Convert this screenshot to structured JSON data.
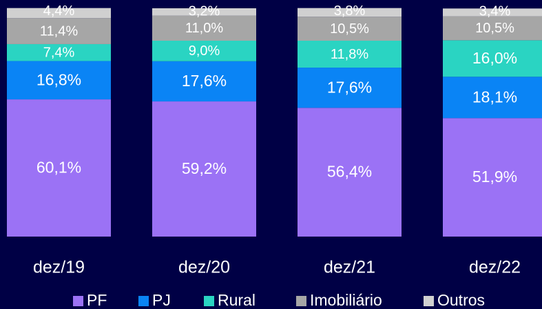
{
  "chart_data": {
    "type": "stacked_bar",
    "categories": [
      "dez/19",
      "dez/20",
      "dez/21",
      "dez/22"
    ],
    "ylim": [
      0,
      100
    ],
    "legend": "bottom",
    "series": [
      {
        "name": "PF",
        "color": "#9b72f5",
        "values": [
          60.1,
          59.2,
          56.4,
          51.9
        ],
        "value_labels": [
          "60,1%",
          "59,2%",
          "56,4%",
          "51,9%"
        ]
      },
      {
        "name": "PJ",
        "color": "#0a84f5",
        "values": [
          16.8,
          17.6,
          17.6,
          18.1
        ],
        "value_labels": [
          "16,8%",
          "17,6%",
          "17,6%",
          "18,1%"
        ]
      },
      {
        "name": "Rural",
        "color": "#2ad4c2",
        "values": [
          7.4,
          9.0,
          11.8,
          16.0
        ],
        "value_labels": [
          "7,4%",
          "9,0%",
          "11,8%",
          "16,0%"
        ]
      },
      {
        "name": "Imobiliário",
        "color": "#a6a6a6",
        "values": [
          11.4,
          11.0,
          10.5,
          10.5
        ],
        "value_labels": [
          "11,4%",
          "11,0%",
          "10,5%",
          "10,5%"
        ]
      },
      {
        "name": "Outros",
        "color": "#d0d0d0",
        "values": [
          4.4,
          3.2,
          3.8,
          3.4
        ],
        "value_labels": [
          "4,4%",
          "3,2%",
          "3,8%",
          "3,4%"
        ]
      }
    ]
  }
}
